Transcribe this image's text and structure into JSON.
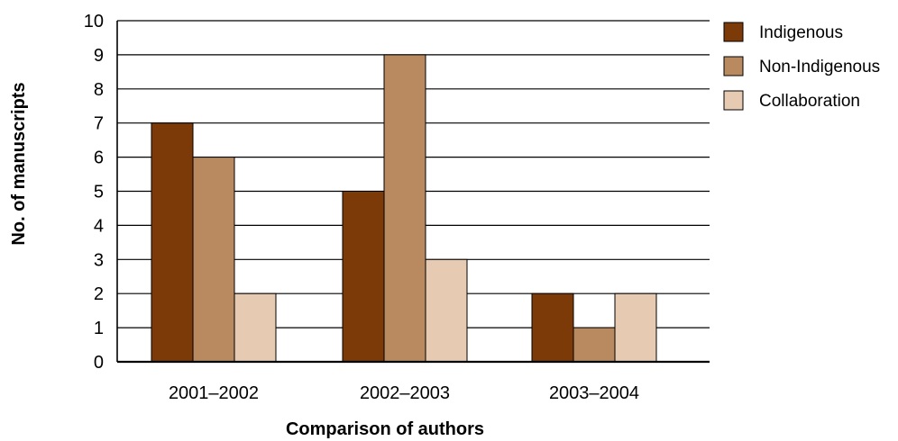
{
  "chart_data": {
    "type": "bar",
    "title": "",
    "xlabel": "Comparison of authors",
    "ylabel": "No. of manuscripts",
    "categories": [
      "2001–2002",
      "2002–2003",
      "2003–2004"
    ],
    "series": [
      {
        "name": "Indigenous",
        "color": "#7b3a08",
        "values": [
          7,
          5,
          2
        ]
      },
      {
        "name": "Non-Indigenous",
        "color": "#b98a5f",
        "values": [
          6,
          9,
          1
        ]
      },
      {
        "name": "Collaboration",
        "color": "#e6cab2",
        "values": [
          2,
          3,
          2
        ]
      }
    ],
    "ylim": [
      0,
      10
    ],
    "yticks": [
      0,
      1,
      2,
      3,
      4,
      5,
      6,
      7,
      8,
      9,
      10
    ],
    "grid": true,
    "legend": "right"
  }
}
